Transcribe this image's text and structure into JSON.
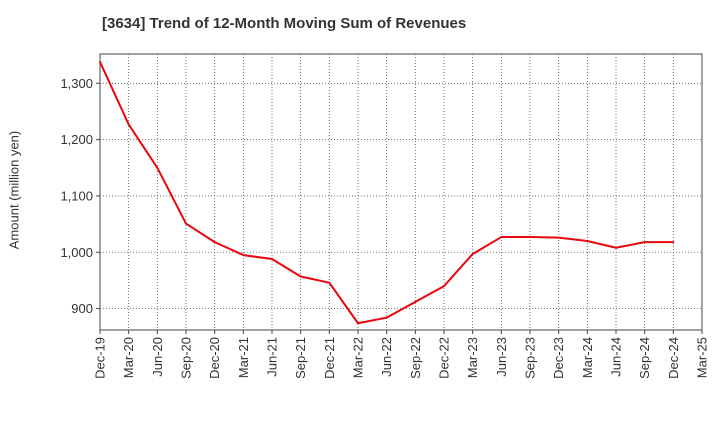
{
  "chart_data": {
    "type": "line",
    "title": "[3634]  Trend of 12-Month Moving Sum of Revenues",
    "ylabel": "Amount (million yen)",
    "xlabel": "",
    "x_tick_labels": [
      "Dec-19",
      "Mar-20",
      "Jun-20",
      "Sep-20",
      "Dec-20",
      "Mar-21",
      "Jun-21",
      "Sep-21",
      "Dec-21",
      "Mar-22",
      "Jun-22",
      "Sep-22",
      "Dec-22",
      "Mar-23",
      "Jun-23",
      "Sep-23",
      "Dec-23",
      "Mar-24",
      "Jun-24",
      "Sep-24",
      "Dec-24",
      "Mar-25"
    ],
    "y_ticks": [
      900,
      1000,
      1100,
      1200,
      1300
    ],
    "y_tick_labels": [
      "900",
      "1,000",
      "1,100",
      "1,200",
      "1,300"
    ],
    "ylim": [
      862,
      1352
    ],
    "grid": true,
    "line_color": "#e8070d",
    "series": [
      {
        "x": [
          "Dec-19",
          "Mar-20",
          "Jun-20",
          "Sep-20",
          "Dec-20",
          "Mar-21",
          "Jun-21",
          "Sep-21",
          "Dec-21",
          "Mar-22",
          "Jun-22",
          "Sep-22",
          "Dec-22",
          "Mar-23",
          "Jun-23",
          "Sep-23",
          "Dec-23",
          "Mar-24",
          "Jun-24",
          "Sep-24",
          "Dec-24"
        ],
        "values": [
          1338,
          1227,
          1150,
          1051,
          1018,
          995,
          988,
          957,
          946,
          874,
          884,
          912,
          940,
          997,
          1027,
          1027,
          1026,
          1020,
          1008,
          1018,
          1018
        ]
      }
    ]
  }
}
